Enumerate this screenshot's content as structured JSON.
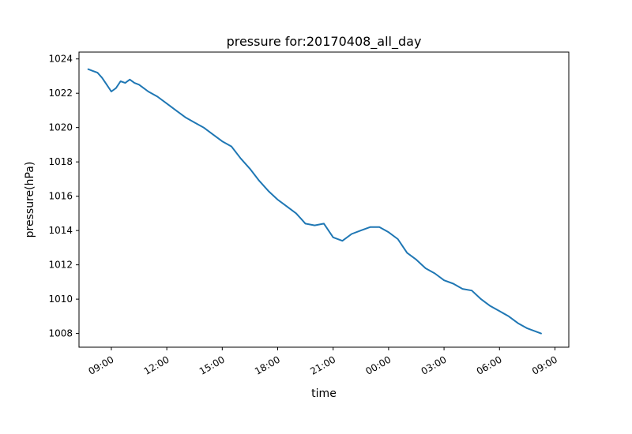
{
  "chart_data": {
    "type": "line",
    "title": "pressure for:20170408_all_day",
    "xlabel": "time",
    "ylabel": "pressure(hPa)",
    "ylim": [
      1007.2,
      1024.4
    ],
    "xlim": [
      "2017-04-08 07:15",
      "2017-04-09 09:45"
    ],
    "grid": false,
    "line_color": "#1f77b4",
    "x_ticks": [
      {
        "time": "2017-04-08 09:00",
        "label": "09:00"
      },
      {
        "time": "2017-04-08 12:00",
        "label": "12:00"
      },
      {
        "time": "2017-04-08 15:00",
        "label": "15:00"
      },
      {
        "time": "2017-04-08 18:00",
        "label": "18:00"
      },
      {
        "time": "2017-04-08 21:00",
        "label": "21:00"
      },
      {
        "time": "2017-04-09 00:00",
        "label": "00:00"
      },
      {
        "time": "2017-04-09 03:00",
        "label": "03:00"
      },
      {
        "time": "2017-04-09 06:00",
        "label": "06:00"
      },
      {
        "time": "2017-04-09 09:00",
        "label": "09:00"
      }
    ],
    "y_ticks": [
      {
        "value": 1008,
        "label": "1008"
      },
      {
        "value": 1010,
        "label": "1010"
      },
      {
        "value": 1012,
        "label": "1012"
      },
      {
        "value": 1014,
        "label": "1014"
      },
      {
        "value": 1016,
        "label": "1016"
      },
      {
        "value": 1018,
        "label": "1018"
      },
      {
        "value": 1020,
        "label": "1020"
      },
      {
        "value": 1022,
        "label": "1022"
      },
      {
        "value": 1024,
        "label": "1024"
      }
    ],
    "series": [
      {
        "x": [
          "2017-04-08 07:45",
          "2017-04-08 08:00",
          "2017-04-08 08:15",
          "2017-04-08 08:30",
          "2017-04-08 08:45",
          "2017-04-08 09:00",
          "2017-04-08 09:15",
          "2017-04-08 09:30",
          "2017-04-08 09:45",
          "2017-04-08 10:00",
          "2017-04-08 10:15",
          "2017-04-08 10:30",
          "2017-04-08 10:45",
          "2017-04-08 11:00",
          "2017-04-08 11:30",
          "2017-04-08 12:00",
          "2017-04-08 12:30",
          "2017-04-08 13:00",
          "2017-04-08 13:30",
          "2017-04-08 14:00",
          "2017-04-08 14:30",
          "2017-04-08 15:00",
          "2017-04-08 15:30",
          "2017-04-08 16:00",
          "2017-04-08 16:30",
          "2017-04-08 17:00",
          "2017-04-08 17:30",
          "2017-04-08 18:00",
          "2017-04-08 18:30",
          "2017-04-08 19:00",
          "2017-04-08 19:30",
          "2017-04-08 20:00",
          "2017-04-08 20:30",
          "2017-04-08 21:00",
          "2017-04-08 21:30",
          "2017-04-08 22:00",
          "2017-04-08 22:30",
          "2017-04-08 23:00",
          "2017-04-08 23:30",
          "2017-04-09 00:00",
          "2017-04-09 00:30",
          "2017-04-09 01:00",
          "2017-04-09 01:30",
          "2017-04-09 02:00",
          "2017-04-09 02:30",
          "2017-04-09 03:00",
          "2017-04-09 03:30",
          "2017-04-09 04:00",
          "2017-04-09 04:30",
          "2017-04-09 05:00",
          "2017-04-09 05:30",
          "2017-04-09 06:00",
          "2017-04-09 06:30",
          "2017-04-09 07:00",
          "2017-04-09 07:30",
          "2017-04-09 08:00",
          "2017-04-09 08:15"
        ],
        "values": [
          1023.4,
          1023.3,
          1023.2,
          1022.9,
          1022.5,
          1022.1,
          1022.3,
          1022.7,
          1022.6,
          1022.8,
          1022.6,
          1022.5,
          1022.3,
          1022.1,
          1021.8,
          1021.4,
          1021.0,
          1020.6,
          1020.3,
          1020.0,
          1019.6,
          1019.2,
          1018.9,
          1018.2,
          1017.6,
          1016.9,
          1016.3,
          1015.8,
          1015.4,
          1015.0,
          1014.4,
          1014.3,
          1014.4,
          1013.6,
          1013.4,
          1013.8,
          1014.0,
          1014.2,
          1014.2,
          1013.9,
          1013.5,
          1012.7,
          1012.3,
          1011.8,
          1011.5,
          1011.1,
          1010.9,
          1010.6,
          1010.5,
          1010.0,
          1009.6,
          1009.3,
          1009.0,
          1008.6,
          1008.3,
          1008.1,
          1008.0
        ]
      }
    ]
  }
}
